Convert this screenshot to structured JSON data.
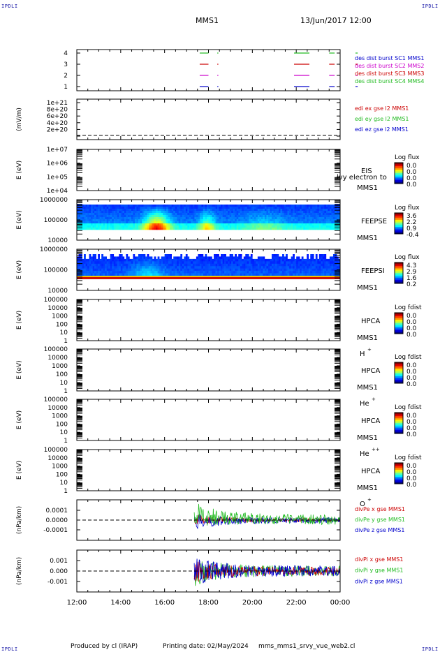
{
  "corner_labels": {
    "top_left": "IPDLI",
    "top_right": "IPDLI",
    "bottom_left": "IPDLI",
    "bottom_right": "IPDLI"
  },
  "header": {
    "spacecraft": "MMS1",
    "date_time": "13/Jun/2017 12:00"
  },
  "footer": {
    "produced_by": "Produced by cl (IRAP)",
    "printing_date": "Printing date: 02/May/2024",
    "filename": "mms_mms1_srvy_vue_web2.cl"
  },
  "time_axis": {
    "tick_labels": [
      "12:00",
      "14:00",
      "16:00",
      "18:00",
      "20:00",
      "22:00",
      "00:00"
    ]
  },
  "chart_data": [
    {
      "type": "line",
      "panel": "des-dist-burst",
      "ylim": [
        0.5,
        4.5
      ],
      "yticks": [
        "4",
        "3",
        "2",
        "1"
      ],
      "legend": [
        {
          "label": "des dist burst SC1 MMS1",
          "color": "#0000cc"
        },
        {
          "label": "des dist burst SC2 MMS2",
          "color": "#cc00cc"
        },
        {
          "label": "des dist burst SC3 MMS3",
          "color": "#cc0000"
        },
        {
          "label": "des dist burst SC4 MMS4",
          "color": "#22bb22"
        }
      ],
      "series": [
        {
          "name": "des dist burst SC1 MMS1",
          "y": 1,
          "intervals": [
            [
              17.6,
              18.0
            ],
            [
              18.4,
              18.45
            ],
            [
              21.9,
              22.6
            ],
            [
              23.5,
              23.75
            ],
            [
              24.7,
              24.8
            ]
          ]
        },
        {
          "name": "des dist burst SC2 MMS2",
          "y": 2,
          "intervals": [
            [
              17.6,
              18.0
            ],
            [
              18.4,
              18.45
            ],
            [
              21.9,
              22.6
            ],
            [
              23.5,
              23.75
            ],
            [
              24.7,
              24.8
            ]
          ]
        },
        {
          "name": "des dist burst SC3 MMS3",
          "y": 3,
          "intervals": [
            [
              17.6,
              18.0
            ],
            [
              18.4,
              18.45
            ],
            [
              21.9,
              22.6
            ],
            [
              23.5,
              23.75
            ],
            [
              24.7,
              24.8
            ]
          ]
        },
        {
          "name": "des dist burst SC4 MMS4",
          "y": 4,
          "intervals": [
            [
              17.6,
              18.0
            ],
            [
              18.4,
              18.45
            ],
            [
              21.9,
              22.6
            ],
            [
              23.5,
              23.75
            ],
            [
              24.7,
              24.8
            ]
          ]
        }
      ]
    },
    {
      "type": "line",
      "panel": "edi",
      "ylabel": "(mV/m)",
      "ylim": [
        0,
        1e+21
      ],
      "yticks": [
        "1e+21",
        "8e+20",
        "6e+20",
        "4e+20",
        "2e+20",
        "0"
      ],
      "legend": [
        {
          "label": "edi ex gse l2 MMS1",
          "color": "#cc0000"
        },
        {
          "label": "edi ey gse l2 MMS1",
          "color": "#22bb22"
        },
        {
          "label": "edi ez gse l2 MMS1",
          "color": "#0000cc"
        }
      ]
    },
    {
      "type": "heatmap",
      "panel": "eis",
      "ylabel": "E (eV)",
      "yticks": [
        "1e+07",
        "1e+06",
        "1e+05",
        "1e+04"
      ],
      "instrument": "EIS",
      "spacecraft": "MMS1",
      "overlay_text": "lvy electron to",
      "colorbar": {
        "title": "Log flux",
        "ticks": [
          "0.0",
          "0.0",
          "0.0",
          "0.0"
        ]
      }
    },
    {
      "type": "heatmap",
      "panel": "feepse",
      "ylabel": "E (eV)",
      "yticks": [
        "1000000",
        "100000",
        "10000"
      ],
      "instrument": "FEEPSE",
      "spacecraft": "MMS1",
      "colorbar": {
        "title": "Log flux",
        "ticks": [
          "3.6",
          "2.2",
          "0.9",
          "-0.4"
        ]
      }
    },
    {
      "type": "heatmap",
      "panel": "feepsi",
      "ylabel": "E (eV)",
      "yticks": [
        "1000000",
        "100000",
        "10000"
      ],
      "instrument": "FEEPSI",
      "spacecraft": "MMS1",
      "colorbar": {
        "title": "Log flux",
        "ticks": [
          "4.3",
          "2.9",
          "1.6",
          "0.2"
        ]
      }
    },
    {
      "type": "heatmap",
      "panel": "hpca-h",
      "ylabel": "E (eV)",
      "yticks": [
        "100000",
        "10000",
        "1000",
        "100",
        "10",
        "1"
      ],
      "instrument": "HPCA",
      "spacecraft": "MMS1",
      "species": "H",
      "charge": "+",
      "colorbar": {
        "title": "Log fdist",
        "ticks": [
          "0.0",
          "0.0",
          "0.0",
          "0.0"
        ]
      }
    },
    {
      "type": "heatmap",
      "panel": "hpca-he1",
      "ylabel": "E (eV)",
      "yticks": [
        "100000",
        "10000",
        "1000",
        "100",
        "10",
        "1"
      ],
      "instrument": "HPCA",
      "spacecraft": "MMS1",
      "species": "He",
      "charge": "+",
      "colorbar": {
        "title": "Log fdist",
        "ticks": [
          "0.0",
          "0.0",
          "0.0",
          "0.0"
        ]
      }
    },
    {
      "type": "heatmap",
      "panel": "hpca-he2",
      "ylabel": "E (eV)",
      "yticks": [
        "100000",
        "10000",
        "1000",
        "100",
        "10",
        "1"
      ],
      "instrument": "HPCA",
      "spacecraft": "MMS1",
      "species": "He",
      "charge": "++",
      "colorbar": {
        "title": "Log fdist",
        "ticks": [
          "0.0",
          "0.0",
          "0.0",
          "0.0"
        ]
      }
    },
    {
      "type": "heatmap",
      "panel": "hpca-o",
      "ylabel": "E (eV)",
      "yticks": [
        "100000",
        "10000",
        "1000",
        "100",
        "10",
        "1"
      ],
      "instrument": "HPCA",
      "spacecraft": "MMS1",
      "species": "O",
      "charge": "+",
      "colorbar": {
        "title": "Log fdist",
        "ticks": [
          "0.0",
          "0.0",
          "0.0",
          "0.0"
        ]
      }
    },
    {
      "type": "line",
      "panel": "divpe",
      "ylabel": "(nPa/km)",
      "ylim": [
        -0.00015,
        0.00015
      ],
      "yticks": [
        "0.0001",
        "0.0000",
        "-0.0001"
      ],
      "legend": [
        {
          "label": "divPe x gse MMS1",
          "color": "#cc0000"
        },
        {
          "label": "divPe y gse MMS1",
          "color": "#22bb22"
        },
        {
          "label": "divPe z gse MMS1",
          "color": "#0000cc"
        }
      ]
    },
    {
      "type": "line",
      "panel": "divpi",
      "ylabel": "(nPa/km)",
      "ylim": [
        -0.0015,
        0.0015
      ],
      "yticks": [
        "0.001",
        "0.000",
        "-0.001"
      ],
      "legend": [
        {
          "label": "divPi x gse MMS1",
          "color": "#cc0000"
        },
        {
          "label": "divPi y gse MMS1",
          "color": "#22bb22"
        },
        {
          "label": "divPi z gse MMS1",
          "color": "#0000cc"
        }
      ]
    }
  ]
}
